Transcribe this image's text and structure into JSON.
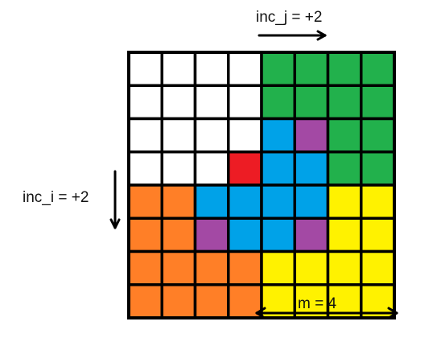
{
  "labels": {
    "inc_j": "inc_j = +2",
    "inc_i": "inc_i = +2",
    "m": "m = 4"
  },
  "palette": {
    "W": "#ffffff",
    "G": "#22b14c",
    "B": "#00a2e8",
    "P": "#a349a4",
    "R": "#ed1c24",
    "O": "#ff7f27",
    "Y": "#fff200",
    "grid_line": "#000000"
  },
  "grid": {
    "rows": 8,
    "cols": 8,
    "cells": [
      [
        "W",
        "W",
        "W",
        "W",
        "G",
        "G",
        "G",
        "G"
      ],
      [
        "W",
        "W",
        "W",
        "W",
        "G",
        "G",
        "G",
        "G"
      ],
      [
        "W",
        "W",
        "W",
        "W",
        "B",
        "P",
        "G",
        "G"
      ],
      [
        "W",
        "W",
        "W",
        "R",
        "B",
        "B",
        "G",
        "G"
      ],
      [
        "O",
        "O",
        "B",
        "B",
        "B",
        "B",
        "Y",
        "Y"
      ],
      [
        "O",
        "O",
        "P",
        "B",
        "B",
        "P",
        "Y",
        "Y"
      ],
      [
        "O",
        "O",
        "O",
        "O",
        "Y",
        "Y",
        "Y",
        "Y"
      ],
      [
        "O",
        "O",
        "O",
        "O",
        "Y",
        "Y",
        "Y",
        "Y"
      ]
    ]
  },
  "arrows": [
    {
      "name": "inc-j-arrow",
      "direction": "right"
    },
    {
      "name": "inc-i-arrow",
      "direction": "down"
    },
    {
      "name": "m-arrow",
      "direction": "both"
    }
  ]
}
